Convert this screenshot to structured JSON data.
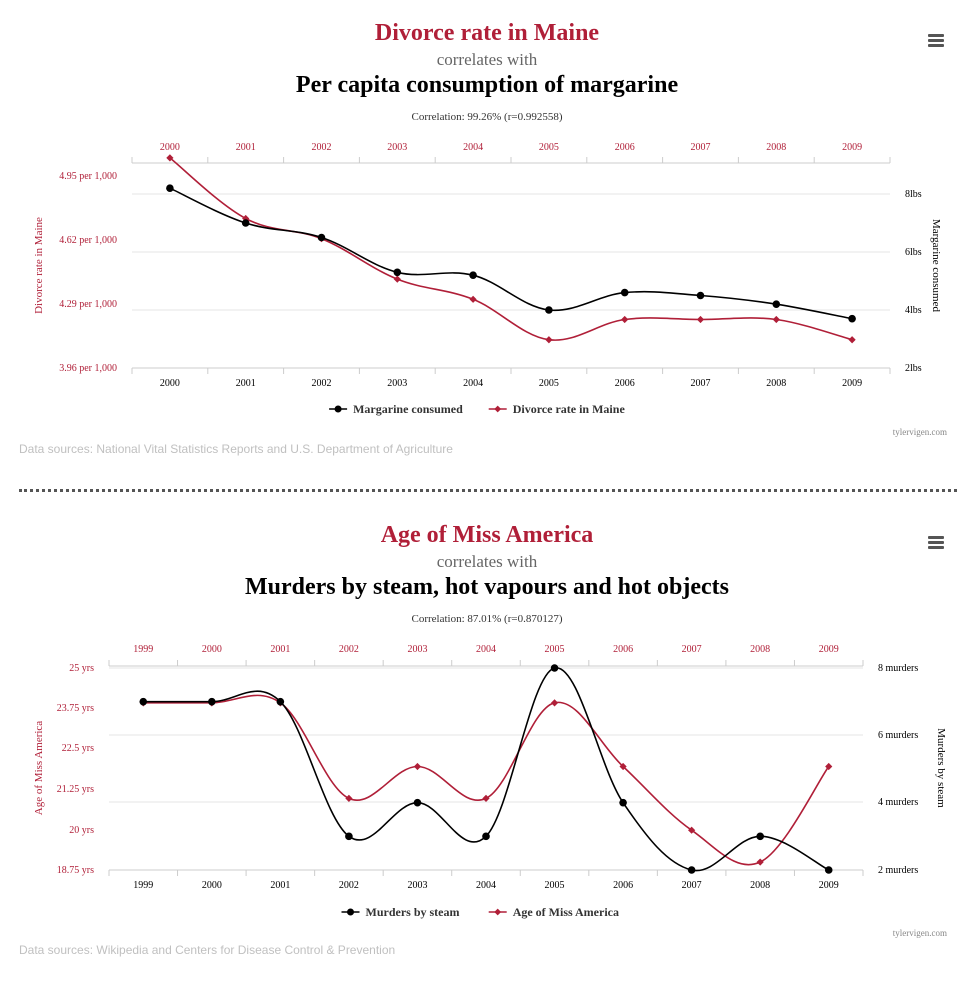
{
  "colors": {
    "accent": "#b01f38",
    "secondary": "#000000",
    "grid": "#e6e6e6"
  },
  "panels": [
    {
      "title_red": "Divorce rate in Maine",
      "title_mid": "correlates with",
      "title_main": "Per capita consumption of margarine",
      "correlation": "Correlation: 99.26% (r=0.992558)",
      "sources": "Data sources: National Vital Statistics Reports and U.S. Department of Agriculture",
      "credit": "tylervigen.com",
      "menu_icon": "hamburger-menu-icon"
    },
    {
      "title_red": "Age of Miss America",
      "title_mid": "correlates with",
      "title_main": "Murders by steam, hot vapours and hot objects",
      "correlation": "Correlation: 87.01% (r=0.870127)",
      "sources": "Data sources: Wikipedia and Centers for Disease Control & Prevention",
      "credit": "tylervigen.com",
      "menu_icon": "hamburger-menu-icon"
    }
  ],
  "chart_data": [
    {
      "type": "line",
      "x": [
        "2000",
        "2001",
        "2002",
        "2003",
        "2004",
        "2005",
        "2006",
        "2007",
        "2008",
        "2009"
      ],
      "left_axis": {
        "label": "Divorce rate in Maine",
        "ticks": [
          "3.96 per 1,000",
          "4.29 per 1,000",
          "4.62 per 1,000",
          "4.95 per 1,000"
        ],
        "range": [
          3.96,
          4.95
        ]
      },
      "right_axis": {
        "label": "Margarine consumed",
        "ticks": [
          "2lbs",
          "4lbs",
          "6lbs",
          "8lbs"
        ],
        "range": [
          2,
          8
        ]
      },
      "series": [
        {
          "name": "Margarine consumed",
          "axis": "right",
          "color": "#000000",
          "marker": "circle",
          "values": [
            8.2,
            7,
            6.5,
            5.3,
            5.2,
            4,
            4.6,
            4.5,
            4.2,
            3.7
          ]
        },
        {
          "name": "Divorce rate in Maine",
          "axis": "left",
          "color": "#b01f38",
          "marker": "diamond",
          "values": [
            5,
            4.7,
            4.6,
            4.4,
            4.3,
            4.1,
            4.2,
            4.2,
            4.2,
            4.1
          ]
        }
      ],
      "grid": true,
      "legend": "bottom-center"
    },
    {
      "type": "line",
      "x": [
        "1999",
        "2000",
        "2001",
        "2002",
        "2003",
        "2004",
        "2005",
        "2006",
        "2007",
        "2008",
        "2009"
      ],
      "left_axis": {
        "label": "Age of Miss America",
        "ticks": [
          "18.75 yrs",
          "20 yrs",
          "21.25 yrs",
          "22.5 yrs",
          "23.75 yrs",
          "25 yrs"
        ],
        "range": [
          18.75,
          25
        ]
      },
      "right_axis": {
        "label": "Murders by steam",
        "ticks": [
          "2 murders",
          "4 murders",
          "6 murders",
          "8 murders"
        ],
        "range": [
          2,
          8
        ]
      },
      "series": [
        {
          "name": "Murders by steam",
          "axis": "right",
          "color": "#000000",
          "marker": "circle",
          "values": [
            7,
            7,
            7,
            3,
            4,
            3,
            8,
            4,
            2,
            3,
            2
          ]
        },
        {
          "name": "Age of Miss America",
          "axis": "left",
          "color": "#b01f38",
          "marker": "diamond",
          "values": [
            24,
            24,
            24,
            21,
            22,
            21,
            24,
            22,
            20,
            19,
            22
          ]
        }
      ],
      "grid": true,
      "legend": "bottom-center"
    }
  ]
}
